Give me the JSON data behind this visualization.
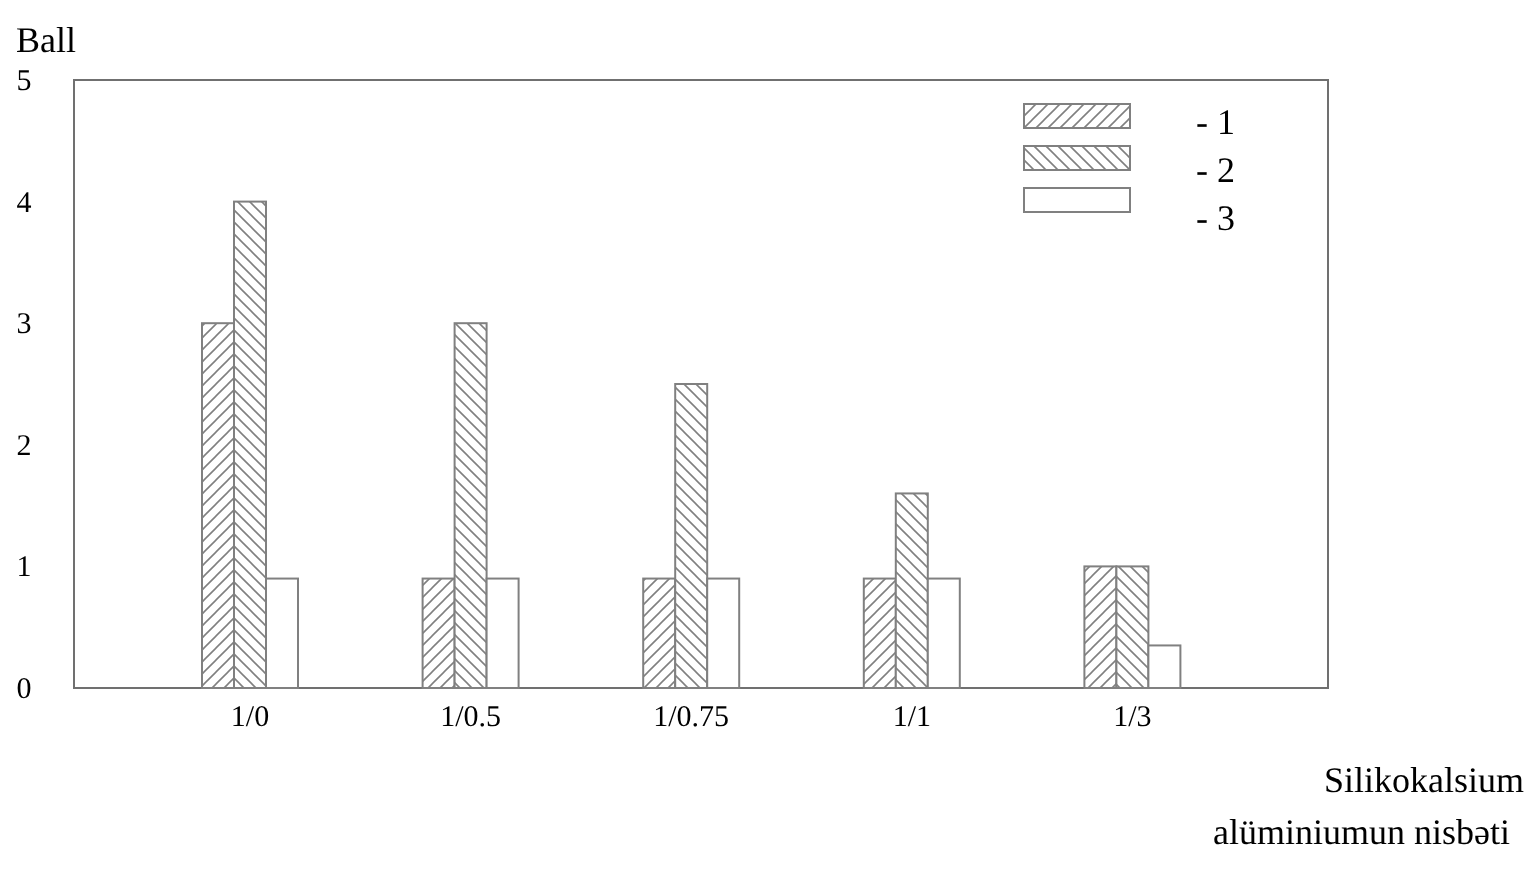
{
  "chart_data": {
    "type": "bar",
    "ylabel": "Ball",
    "xlabel": "Silikokalsium\nalüminiumun nisbəti",
    "categories": [
      "1/0",
      "1/0.5",
      "1/0.75",
      "1/1",
      "1/3"
    ],
    "series": [
      {
        "name": "- 1",
        "color": "#808080",
        "values": [
          3,
          0.9,
          0.9,
          0.9,
          1
        ]
      },
      {
        "name": "- 2",
        "color": "#808080",
        "values": [
          4,
          3,
          2.5,
          1.6,
          1
        ]
      },
      {
        "name": "- 3",
        "color": "#808080",
        "values": [
          0.9,
          0.9,
          0.9,
          0.9,
          0.35
        ]
      }
    ],
    "ylim": [
      0,
      5
    ],
    "yticks": [
      0,
      1,
      2,
      3,
      4,
      5
    ],
    "grid": false,
    "legend": "top right"
  }
}
